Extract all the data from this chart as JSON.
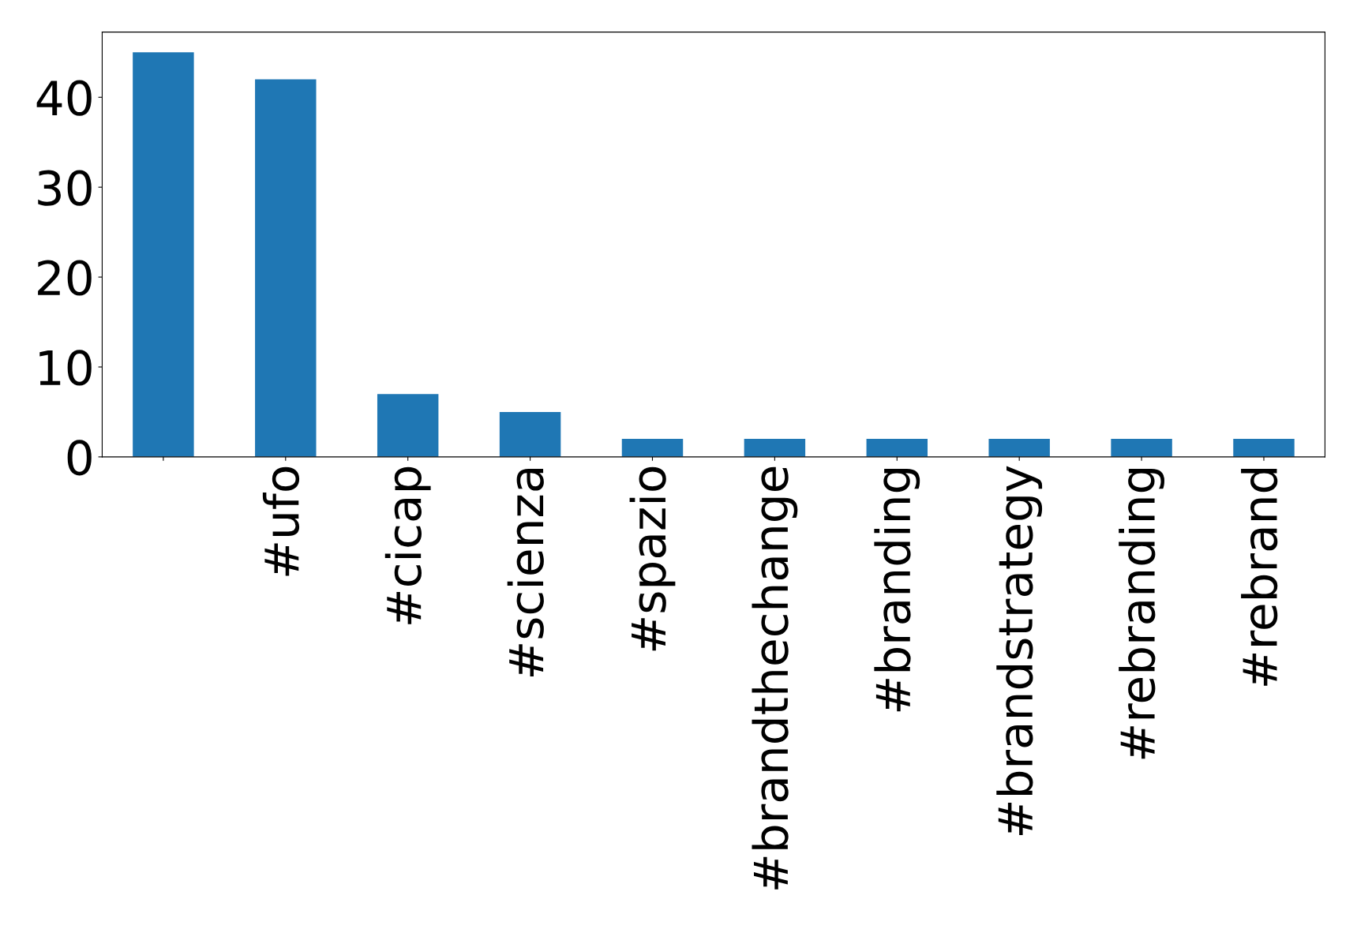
{
  "chart_data": {
    "type": "bar",
    "categories": [
      null,
      "#ufo",
      "#cicap",
      "#scienza",
      "#spazio",
      "#brandthechange",
      "#branding",
      "#brandstrategy",
      "#rebranding",
      "#rebrand"
    ],
    "values": [
      45,
      42,
      7,
      5,
      2,
      2,
      2,
      2,
      2,
      2
    ],
    "color": "#1f77b4",
    "ylim": [
      0,
      47.25
    ],
    "yticks": [
      0,
      10,
      20,
      30,
      40
    ],
    "grid": false,
    "legend": false
  }
}
